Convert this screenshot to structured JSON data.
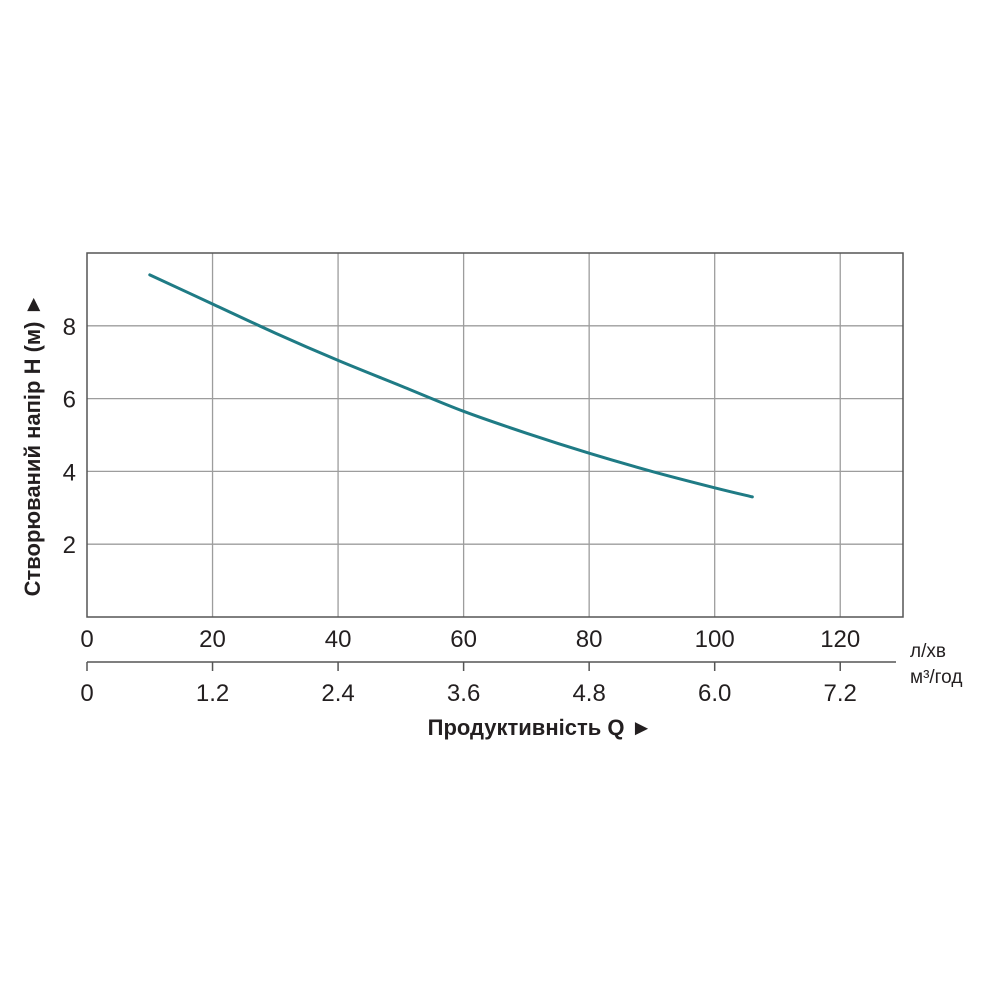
{
  "chart_data": {
    "type": "line",
    "xlabel": "Продуктивність  Q ►",
    "ylabel": "Створюваний напір H (м) ►",
    "x_unit": "л/хв",
    "x2_unit": "м³/год",
    "xlim": [
      0,
      130
    ],
    "ylim": [
      0,
      10
    ],
    "x_ticks": [
      0,
      20,
      40,
      60,
      80,
      100,
      120
    ],
    "x_tick_labels": [
      "0",
      "20",
      "40",
      "60",
      "80",
      "100",
      "120"
    ],
    "x2_tick_labels": [
      "0",
      "1.2",
      "2.4",
      "3.6",
      "4.8",
      "6.0",
      "7.2"
    ],
    "y_ticks": [
      2,
      4,
      6,
      8
    ],
    "y_tick_labels": [
      "2",
      "4",
      "6",
      "8"
    ],
    "grid": true,
    "line_color": "#1f7b85",
    "series": [
      {
        "x": [
          10,
          20,
          30,
          40,
          50,
          60,
          70,
          80,
          90,
          100,
          106
        ],
        "y": [
          9.4,
          8.6,
          7.8,
          7.05,
          6.35,
          5.65,
          5.05,
          4.5,
          4.0,
          3.55,
          3.3
        ]
      }
    ]
  }
}
